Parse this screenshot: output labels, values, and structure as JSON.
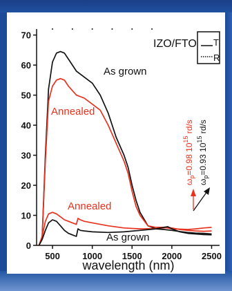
{
  "chart_data": {
    "type": "line",
    "title": "",
    "xlabel": "wavelength  (nm)",
    "ylabel": "",
    "xlim": [
      300,
      2600
    ],
    "ylim": [
      0,
      72
    ],
    "xticks": [
      "500",
      "1000",
      "1500",
      "2000",
      "2500"
    ],
    "yticks": [
      "0",
      "10",
      "20",
      "30",
      "40",
      "50",
      "60",
      "70"
    ],
    "legend": {
      "position": "top-right",
      "label": "IZO/FTO",
      "entries": [
        {
          "label": "T",
          "style": "solid"
        },
        {
          "label": "R",
          "style": "dotted"
        }
      ]
    },
    "series": [
      {
        "name": "As grown",
        "measure": "T",
        "color": "#111111",
        "x": [
          330,
          370,
          410,
          450,
          500,
          550,
          600,
          650,
          700,
          800,
          900,
          1000,
          1100,
          1200,
          1300,
          1400,
          1450,
          1500,
          1550,
          1600,
          1700,
          1800,
          1900,
          2000,
          2100,
          2200,
          2300,
          2400,
          2500
        ],
        "y": [
          0,
          3,
          30,
          52,
          61,
          64,
          64.5,
          64,
          62,
          58,
          56,
          54,
          50,
          44,
          36,
          30,
          26,
          20,
          15,
          11,
          6.5,
          5.5,
          5.3,
          5,
          4.6,
          4.3,
          4.1,
          4,
          3.8
        ]
      },
      {
        "name": "Annealed",
        "measure": "T",
        "color": "#e8321e",
        "x": [
          330,
          370,
          410,
          450,
          500,
          550,
          600,
          650,
          700,
          800,
          900,
          1000,
          1100,
          1200,
          1300,
          1400,
          1450,
          1500,
          1550,
          1600,
          1700,
          1800,
          1900,
          2000,
          2100,
          2200,
          2300,
          2400,
          2500
        ],
        "y": [
          0,
          3,
          28,
          48,
          53,
          55,
          55.5,
          55,
          53,
          50,
          49,
          47,
          45,
          40,
          34,
          28,
          24,
          18,
          13,
          10,
          6.5,
          6,
          6,
          5.5,
          5.4,
          5.3,
          5.5,
          5.8,
          6
        ]
      },
      {
        "name": "Annealed",
        "measure": "R",
        "color": "#e8321e",
        "x": [
          330,
          370,
          410,
          450,
          500,
          550,
          600,
          650,
          700,
          750,
          800,
          820,
          850,
          900,
          1000,
          1200,
          1400,
          1600,
          1800,
          1900,
          1950,
          2000,
          2100,
          2200,
          2300,
          2400,
          2500
        ],
        "y": [
          0,
          3,
          8,
          10.5,
          11,
          10.5,
          9.5,
          8.5,
          8,
          7.5,
          7,
          9,
          8.5,
          8,
          7.5,
          6.5,
          5.8,
          5.5,
          5.6,
          5.8,
          6,
          5.8,
          5.3,
          5,
          4.8,
          4.7,
          4.8
        ]
      },
      {
        "name": "As grown",
        "measure": "R",
        "color": "#111111",
        "x": [
          330,
          370,
          410,
          450,
          500,
          550,
          600,
          650,
          700,
          750,
          800,
          820,
          850,
          900,
          1000,
          1200,
          1400,
          1600,
          1800,
          1900,
          1950,
          2000,
          2100,
          2200,
          2300,
          2400,
          2500
        ],
        "y": [
          0,
          2,
          5,
          7.5,
          8.5,
          8,
          6.5,
          5,
          4,
          3.5,
          3,
          5.5,
          5,
          4.8,
          4.5,
          4.3,
          4.5,
          5,
          5.5,
          6,
          6.2,
          5.5,
          4.5,
          4,
          3.8,
          3.6,
          3.5
        ]
      }
    ],
    "annotations": {
      "as_grown_T": "As grown",
      "annealed_T": "Annealed",
      "annealed_R": "Annealed",
      "as_grown_R": "As grown",
      "omega_annealed": {
        "prefix": "ω",
        "sub": "p",
        "value": "=0.98 10",
        "exp": "15",
        "unit": " rd/s",
        "color": "#e8321e"
      },
      "omega_as_grown": {
        "prefix": "ω",
        "sub": "p",
        "value": "=0.93 10",
        "exp": "15",
        "unit": " rd/s",
        "color": "#111111"
      }
    },
    "grid": false
  }
}
